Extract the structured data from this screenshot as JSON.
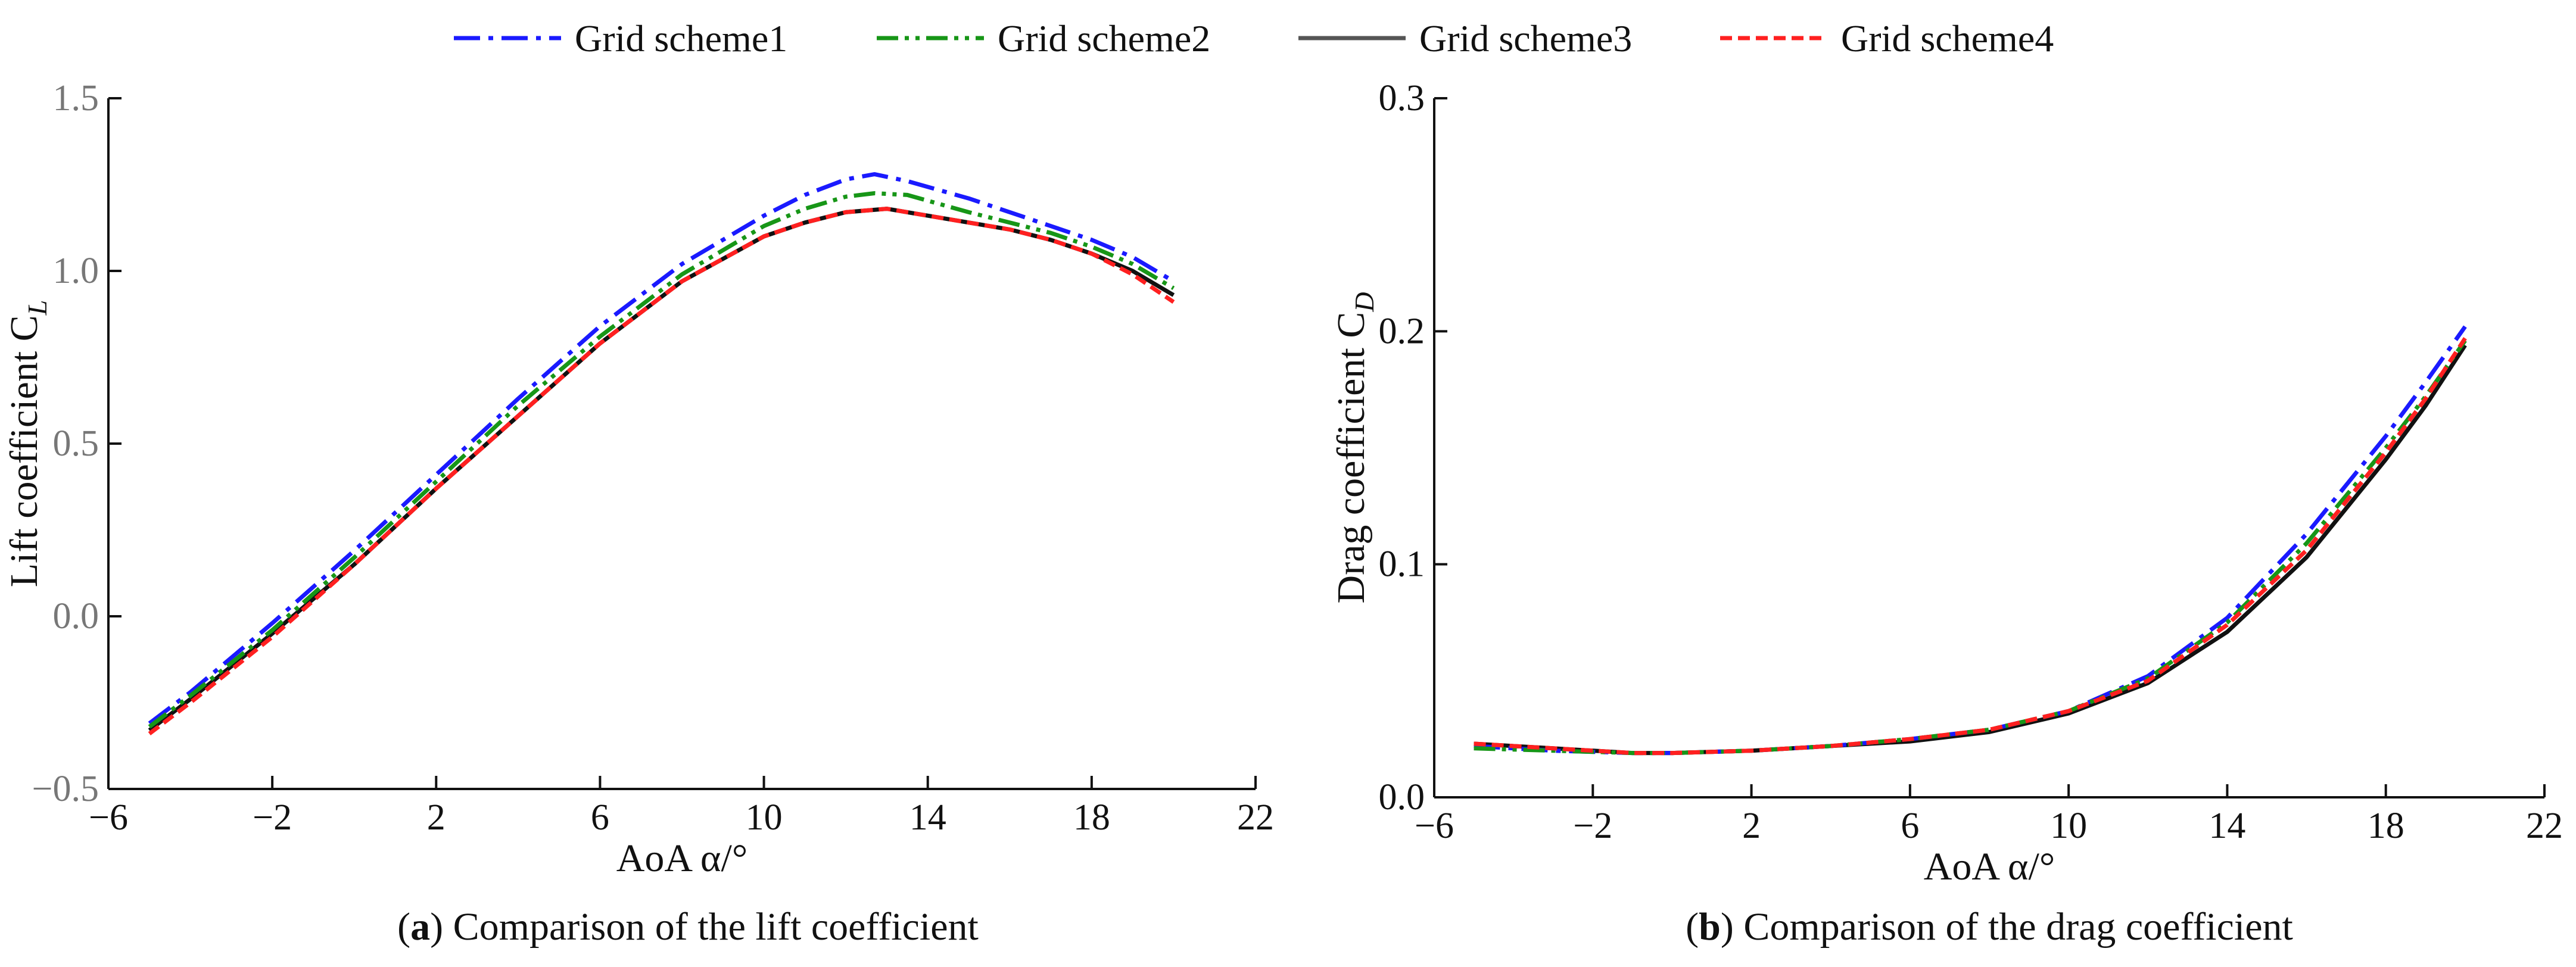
{
  "legend": {
    "position": "top-center",
    "entries": [
      {
        "name": "Grid scheme1",
        "color": "#1a1aff",
        "dash": "dashdot"
      },
      {
        "name": "Grid scheme2",
        "color": "#179617",
        "dash": "dashdotdot"
      },
      {
        "name": "Grid scheme3",
        "color": "#555555",
        "dash": "solid"
      },
      {
        "name": "Grid scheme4",
        "color": "#ff2020",
        "dash": "dash"
      }
    ]
  },
  "chart_data": [
    {
      "type": "line",
      "caption_label": "a",
      "caption_text": ") Comparison of the lift coefficient",
      "xlabel": "AoA α/°",
      "ylabel": "Lift coefficient C",
      "ylabel_sub": "L",
      "xlim": [
        -6,
        22
      ],
      "ylim": [
        -0.5,
        1.5
      ],
      "xticks": [
        -6,
        -2,
        2,
        6,
        10,
        14,
        18,
        22
      ],
      "xtick_labels": [
        "−6",
        "−2",
        "2",
        "6",
        "10",
        "14",
        "18",
        "22"
      ],
      "yticks": [
        -0.5,
        0.0,
        0.5,
        1.0,
        1.5
      ],
      "ytick_labels": [
        "−0.5",
        "0.0",
        "0.5",
        "1.0",
        "1.5"
      ],
      "grid": false,
      "series": [
        {
          "name": "Grid scheme1",
          "x": [
            -5,
            -4,
            -2,
            0,
            2,
            4,
            6,
            8,
            10,
            11,
            12,
            12.7,
            13.5,
            15,
            17,
            18,
            19,
            20
          ],
          "y": [
            -0.31,
            -0.22,
            -0.02,
            0.19,
            0.41,
            0.63,
            0.84,
            1.02,
            1.16,
            1.22,
            1.265,
            1.28,
            1.26,
            1.21,
            1.13,
            1.09,
            1.04,
            0.97
          ]
        },
        {
          "name": "Grid scheme2",
          "x": [
            -5,
            -4,
            -2,
            0,
            2,
            4,
            6,
            8,
            10,
            11,
            12,
            12.7,
            13.5,
            15,
            17,
            18,
            19,
            20
          ],
          "y": [
            -0.32,
            -0.23,
            -0.04,
            0.17,
            0.39,
            0.61,
            0.81,
            0.99,
            1.13,
            1.18,
            1.215,
            1.225,
            1.22,
            1.17,
            1.11,
            1.07,
            1.02,
            0.95
          ]
        },
        {
          "name": "Grid scheme3",
          "x": [
            -5,
            -4,
            -2,
            0,
            2,
            4,
            6,
            8,
            10,
            11,
            12,
            13,
            14,
            16,
            17,
            18,
            19,
            20
          ],
          "y": [
            -0.33,
            -0.24,
            -0.05,
            0.15,
            0.37,
            0.58,
            0.79,
            0.97,
            1.1,
            1.14,
            1.17,
            1.18,
            1.16,
            1.12,
            1.09,
            1.05,
            1.0,
            0.93
          ]
        },
        {
          "name": "Grid scheme4",
          "x": [
            -5,
            -4,
            -2,
            0,
            2,
            4,
            6,
            8,
            10,
            11,
            12,
            13,
            14,
            16,
            17,
            18,
            19,
            20
          ],
          "y": [
            -0.34,
            -0.25,
            -0.06,
            0.15,
            0.37,
            0.58,
            0.79,
            0.97,
            1.1,
            1.14,
            1.17,
            1.18,
            1.16,
            1.12,
            1.09,
            1.05,
            0.99,
            0.91
          ]
        }
      ]
    },
    {
      "type": "line",
      "caption_label": "b",
      "caption_text": ") Comparison of the drag coefficient",
      "xlabel": "AoA α/°",
      "ylabel": "Drag coefficient C",
      "ylabel_sub": "D",
      "xlim": [
        -6,
        22
      ],
      "ylim": [
        0.0,
        0.3
      ],
      "xticks": [
        -6,
        -2,
        2,
        6,
        10,
        14,
        18,
        22
      ],
      "xtick_labels": [
        "−6",
        "−2",
        "2",
        "6",
        "10",
        "14",
        "18",
        "22"
      ],
      "yticks": [
        0.0,
        0.1,
        0.2,
        0.3
      ],
      "ytick_labels": [
        "0.0",
        "0.1",
        "0.2",
        "0.3"
      ],
      "grid": false,
      "series": [
        {
          "name": "Grid scheme1",
          "x": [
            -5,
            -3,
            -1,
            0,
            2,
            4,
            6,
            8,
            10,
            12,
            14,
            16,
            18,
            19,
            20
          ],
          "y": [
            0.022,
            0.02,
            0.019,
            0.019,
            0.02,
            0.022,
            0.025,
            0.029,
            0.037,
            0.052,
            0.077,
            0.113,
            0.155,
            0.178,
            0.202
          ]
        },
        {
          "name": "Grid scheme2",
          "x": [
            -5,
            -3,
            -1,
            0,
            2,
            4,
            6,
            8,
            10,
            12,
            14,
            16,
            18,
            19,
            20
          ],
          "y": [
            0.021,
            0.02,
            0.019,
            0.019,
            0.02,
            0.022,
            0.025,
            0.029,
            0.037,
            0.051,
            0.075,
            0.109,
            0.15,
            0.172,
            0.196
          ]
        },
        {
          "name": "Grid scheme3",
          "x": [
            -5,
            -3,
            -1,
            0,
            2,
            4,
            6,
            8,
            10,
            12,
            14,
            16,
            18,
            19,
            20
          ],
          "y": [
            0.023,
            0.021,
            0.019,
            0.019,
            0.02,
            0.022,
            0.024,
            0.028,
            0.036,
            0.049,
            0.071,
            0.103,
            0.145,
            0.168,
            0.194
          ]
        },
        {
          "name": "Grid scheme4",
          "x": [
            -5,
            -3,
            -1,
            0,
            2,
            4,
            6,
            8,
            10,
            12,
            14,
            16,
            18,
            19,
            20
          ],
          "y": [
            0.023,
            0.021,
            0.019,
            0.019,
            0.02,
            0.022,
            0.025,
            0.029,
            0.037,
            0.05,
            0.074,
            0.106,
            0.148,
            0.171,
            0.197
          ]
        }
      ]
    }
  ]
}
